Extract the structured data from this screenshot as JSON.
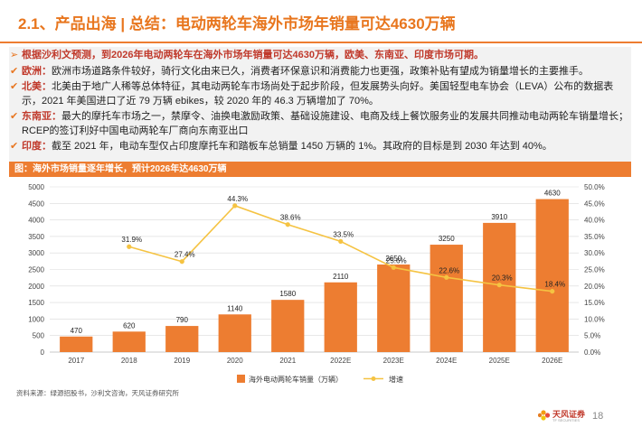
{
  "header": {
    "title": "2.1、产品出海 | 总结：电动两轮车海外市场年销量可达4630万辆"
  },
  "bullets": [
    {
      "label": "",
      "text": "根据沙利文预测，到2026年电动两轮车在海外市场年销量可达4630万辆，欧美、东南亚、印度市场可期。"
    },
    {
      "label": "欧洲：",
      "text": "欧洲市场道路条件较好，骑行文化由来已久，消费者环保意识和消费能力也更强，政策补贴有望成为销量增长的主要推手。"
    },
    {
      "label": "北美：",
      "text": "北美由于地广人稀等总体特征，其电动两轮车市场尚处于起步阶段，但发展势头向好。美国轻型电车协会（LEVA）公布的数据表示，2021 年美国进口了近 79 万辆 ebikes，较 2020 年的 46.3 万辆增加了 70%。"
    },
    {
      "label": "东南亚：",
      "text": "最大的摩托车市场之一，禁摩令、油换电激励政策、基础设施建设、电商及线上餐饮服务业的发展共同推动电动两轮车销量增长；RCEP的签订利好中国电动两轮车厂商向东南亚出口"
    },
    {
      "label": "印度：",
      "text": "截至 2021 年，电动车型仅占印度摩托车和踏板车总销量 1450 万辆的 1%。其政府的目标是到 2030 年达到 40%。"
    }
  ],
  "figure_caption": "图：海外市场销量逐年增长，预计2026年达4630万辆",
  "chart_data": {
    "type": "bar",
    "categories": [
      "2017",
      "2018",
      "2019",
      "2020",
      "2021",
      "2022E",
      "2023E",
      "2024E",
      "2025E",
      "2026E"
    ],
    "series": [
      {
        "name": "海外电动两轮车销量（万辆）",
        "type": "bar",
        "axis": "left",
        "color": "#ed7d31",
        "values": [
          470,
          620,
          790,
          1140,
          1580,
          2110,
          2650,
          3250,
          3910,
          4630
        ],
        "labels": [
          "470",
          "620",
          "790",
          "1140",
          "1580",
          "2110",
          "2650",
          "3250",
          "3910",
          "4630"
        ]
      },
      {
        "name": "增速",
        "type": "line",
        "axis": "right",
        "color": "#f5c342",
        "values": [
          null,
          31.9,
          27.4,
          44.3,
          38.6,
          33.5,
          25.6,
          22.6,
          20.3,
          18.4
        ],
        "labels": [
          "",
          "31.9%",
          "27.4%",
          "44.3%",
          "38.6%",
          "33.5%",
          "25.6%",
          "22.6%",
          "20.3%",
          "18.4%"
        ]
      }
    ],
    "ylim": [
      0,
      5000
    ],
    "y_ticks": [
      "0",
      "500",
      "1000",
      "1500",
      "2000",
      "2500",
      "3000",
      "3500",
      "4000",
      "4500",
      "5000"
    ],
    "y2lim": [
      0,
      50
    ],
    "y2_ticks": [
      "0.0%",
      "5.0%",
      "10.0%",
      "15.0%",
      "20.0%",
      "25.0%",
      "30.0%",
      "35.0%",
      "40.0%",
      "45.0%",
      "50.0%"
    ],
    "grid": true,
    "legend": "bottom"
  },
  "source": "资料来源：绿源招股书，沙利文咨询，天风证券研究所",
  "logo": {
    "text": "天风证券",
    "sub": "TF SECURITIES"
  },
  "page_number": "18"
}
